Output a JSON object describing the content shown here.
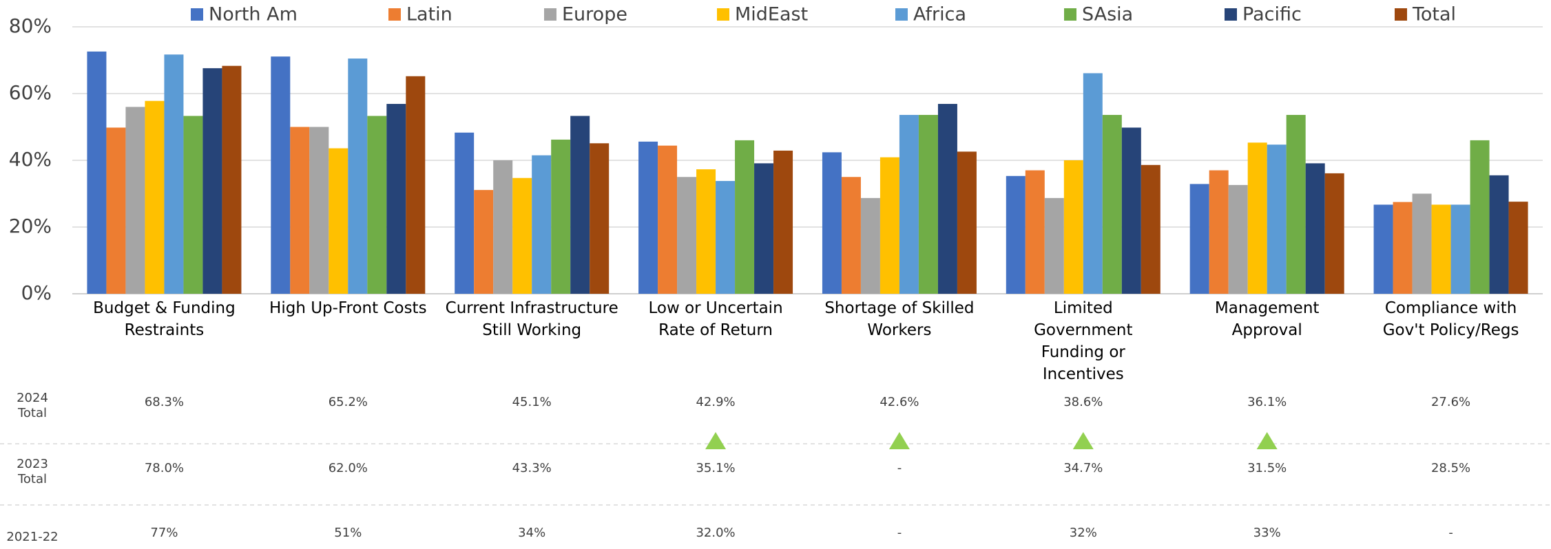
{
  "chart_data": {
    "type": "bar",
    "categories": [
      "Budget & Funding\nRestraints",
      "High Up-Front Costs",
      "Current Infrastructure\nStill Working",
      "Low or Uncertain\nRate of Return",
      "Shortage of Skilled\nWorkers",
      "Limited\nGovernment\nFunding or\nIncentives",
      "Management\nApproval",
      "Compliance with\nGov't Policy/Regs"
    ],
    "series": [
      {
        "name": "North Am",
        "color": "#4472c4",
        "values": [
          72.6,
          71.1,
          48.3,
          45.6,
          42.4,
          35.3,
          32.9,
          26.7
        ]
      },
      {
        "name": "Latin",
        "color": "#ed7d31",
        "values": [
          49.8,
          50,
          31.1,
          44.4,
          35,
          37,
          37,
          27.5
        ]
      },
      {
        "name": "Europe",
        "color": "#a5a5a5",
        "values": [
          56,
          50,
          40,
          35,
          28.7,
          28.7,
          32.6,
          30
        ]
      },
      {
        "name": "MidEast",
        "color": "#ffc000",
        "values": [
          57.8,
          43.6,
          34.7,
          37.3,
          40.9,
          40,
          45.3,
          26.7
        ]
      },
      {
        "name": "Africa",
        "color": "#5b9bd5",
        "values": [
          71.7,
          70.5,
          41.5,
          33.8,
          53.6,
          66.1,
          44.7,
          26.7
        ]
      },
      {
        "name": "SAsia",
        "color": "#70ad47",
        "values": [
          53.3,
          53.3,
          46.2,
          46,
          53.6,
          53.6,
          53.6,
          46
        ]
      },
      {
        "name": "Pacific",
        "color": "#264478",
        "values": [
          67.6,
          56.9,
          53.3,
          39.1,
          56.9,
          49.8,
          39.1,
          35.5
        ]
      },
      {
        "name": "Total",
        "color": "#9e480e",
        "values": [
          68.3,
          65.2,
          45.1,
          42.9,
          42.6,
          38.6,
          36.1,
          27.6
        ]
      }
    ],
    "ylim": [
      0,
      80
    ],
    "yticks": [
      {
        "value": 0,
        "label": "0%"
      },
      {
        "value": 20,
        "label": "20%"
      },
      {
        "value": 40,
        "label": "40%"
      },
      {
        "value": 60,
        "label": "60%"
      },
      {
        "value": 80,
        "label": "80%"
      }
    ],
    "grid": true,
    "legend": "top"
  },
  "table": {
    "row_labels": [
      "2024\nTotal",
      "2023\nTotal",
      "2021-22"
    ],
    "rows": [
      [
        "68.3%",
        "65.2%",
        "45.1%",
        "42.9%",
        "42.6%",
        "38.6%",
        "36.1%",
        "27.6%"
      ],
      [
        "78.0%",
        "62.0%",
        "43.3%",
        "35.1%",
        "-",
        "34.7%",
        "31.5%",
        "28.5%"
      ],
      [
        "77%",
        "51%",
        "34%",
        "32.0%",
        "-",
        "32%",
        "33%",
        "-"
      ]
    ]
  }
}
